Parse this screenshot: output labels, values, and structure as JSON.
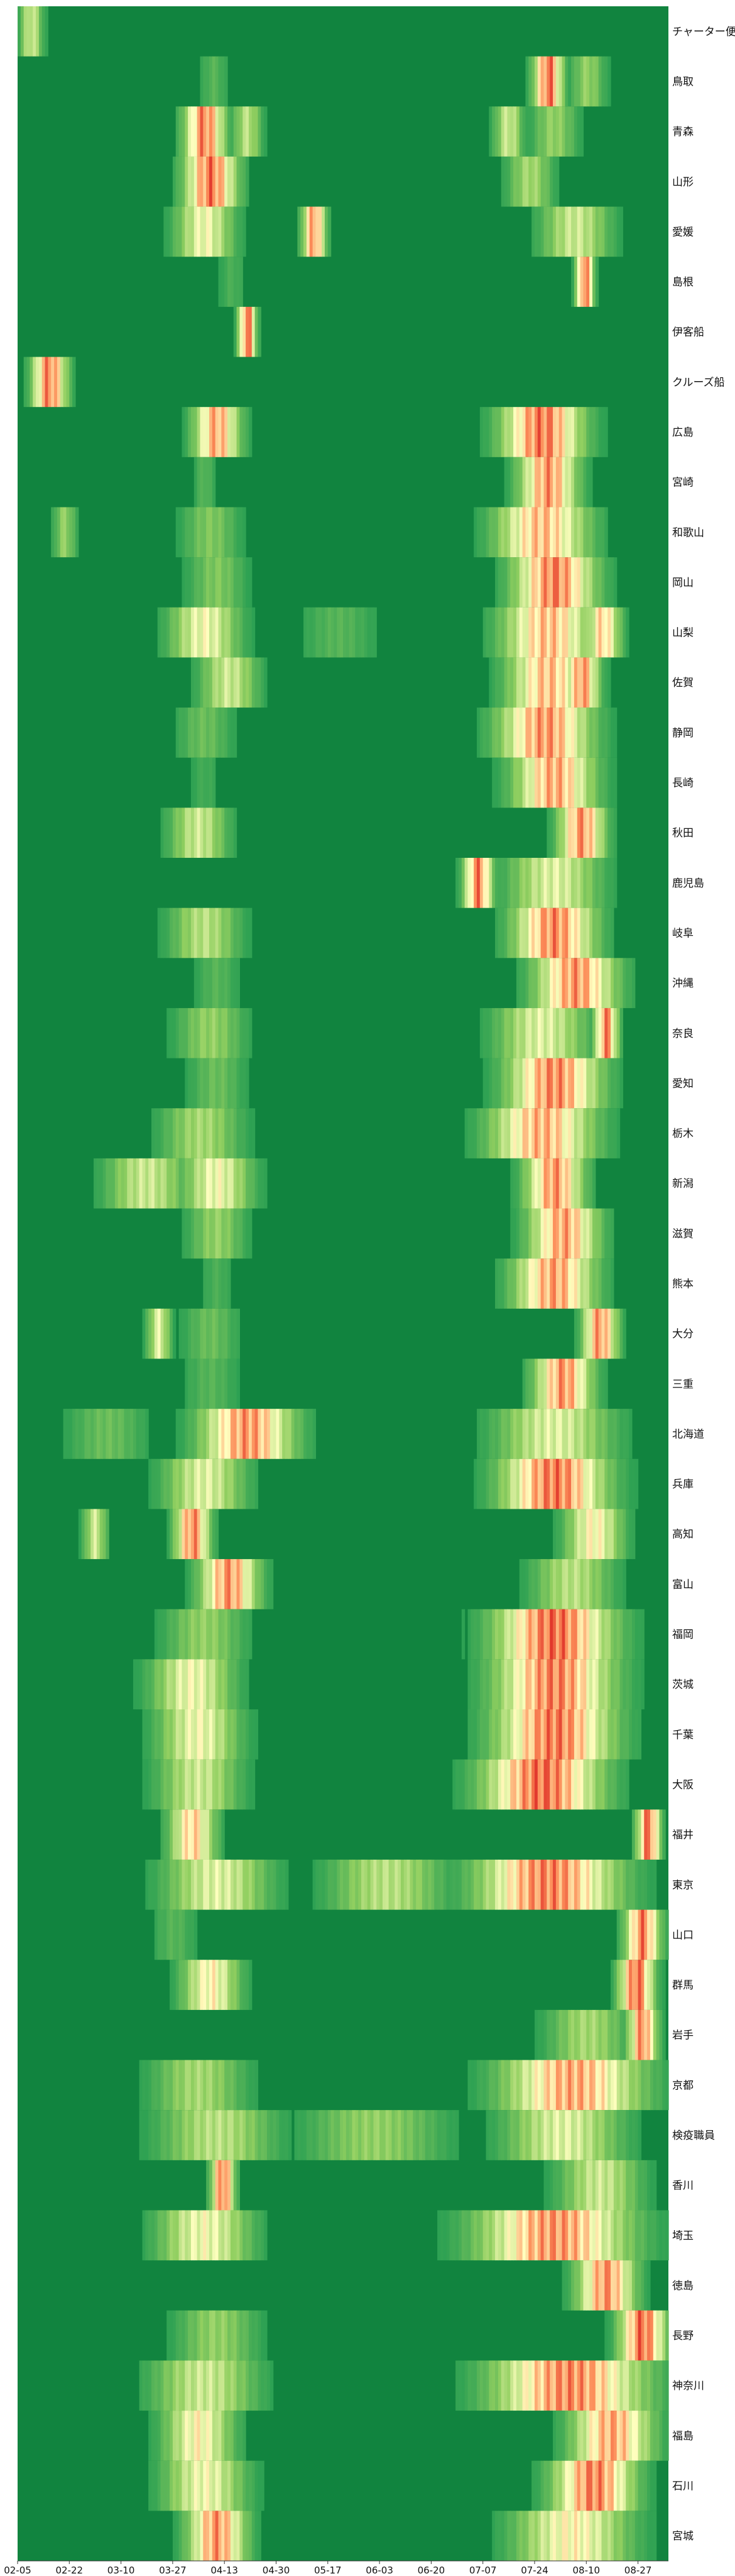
{
  "chart_data": {
    "type": "heatmap",
    "title": "",
    "xlabel": "",
    "ylabel": "",
    "x_ticks": [
      "02-05",
      "02-22",
      "03-10",
      "03-27",
      "04-13",
      "04-30",
      "05-17",
      "06-03",
      "06-20",
      "07-07",
      "07-24",
      "08-10",
      "08-27"
    ],
    "x_start": "02-05",
    "x_end": "09-06",
    "colormap": "RdYlGn_r",
    "value_range": [
      0,
      1
    ],
    "colors": {
      "background": "#11843f",
      "low": "#1a9850",
      "mid": "#ffffbf",
      "high": "#d7191c"
    },
    "rows": [
      {
        "name": "チャーター便",
        "peaks": [
          {
            "at": "02-09",
            "level": 0.45,
            "width": 4
          }
        ]
      },
      {
        "name": "鳥取",
        "peaks": [
          {
            "at": "04-09",
            "level": 0.15,
            "width": 5
          },
          {
            "at": "07-28",
            "level": 0.95,
            "width": 5
          },
          {
            "at": "08-10",
            "level": 0.3,
            "width": 6
          }
        ]
      },
      {
        "name": "青森",
        "peaks": [
          {
            "at": "04-06",
            "level": 0.9,
            "width": 7
          },
          {
            "at": "04-20",
            "level": 0.4,
            "width": 5
          },
          {
            "at": "07-15",
            "level": 0.45,
            "width": 5
          },
          {
            "at": "07-30",
            "level": 0.3,
            "width": 8
          }
        ]
      },
      {
        "name": "山形",
        "peaks": [
          {
            "at": "04-08",
            "level": 0.92,
            "width": 9
          },
          {
            "at": "07-22",
            "level": 0.35,
            "width": 8
          }
        ]
      },
      {
        "name": "愛媛",
        "peaks": [
          {
            "at": "04-06",
            "level": 0.55,
            "width": 10
          },
          {
            "at": "05-12",
            "level": 0.85,
            "width": 4
          },
          {
            "at": "08-06",
            "level": 0.45,
            "width": 12
          }
        ]
      },
      {
        "name": "島根",
        "peaks": [
          {
            "at": "04-15",
            "level": 0.12,
            "width": 5
          },
          {
            "at": "08-09",
            "level": 0.95,
            "width": 3
          }
        ]
      },
      {
        "name": "伊客船",
        "peaks": [
          {
            "at": "04-20",
            "level": 0.95,
            "width": 3
          }
        ]
      },
      {
        "name": "クルーズ船",
        "peaks": [
          {
            "at": "02-15",
            "level": 0.9,
            "width": 6
          }
        ]
      },
      {
        "name": "広島",
        "peaks": [
          {
            "at": "04-10",
            "level": 0.8,
            "width": 8
          },
          {
            "at": "07-26",
            "level": 0.92,
            "width": 14
          }
        ]
      },
      {
        "name": "宮崎",
        "peaks": [
          {
            "at": "04-06",
            "level": 0.15,
            "width": 4
          },
          {
            "at": "07-28",
            "level": 0.85,
            "width": 10
          }
        ]
      },
      {
        "name": "和歌山",
        "peaks": [
          {
            "at": "02-20",
            "level": 0.3,
            "width": 4
          },
          {
            "at": "04-08",
            "level": 0.25,
            "width": 10
          },
          {
            "at": "07-26",
            "level": 0.75,
            "width": 16
          }
        ]
      },
      {
        "name": "岡山",
        "peaks": [
          {
            "at": "04-10",
            "level": 0.25,
            "width": 10
          },
          {
            "at": "07-30",
            "level": 0.9,
            "width": 14
          }
        ]
      },
      {
        "name": "山梨",
        "peaks": [
          {
            "at": "04-06",
            "level": 0.55,
            "width": 12
          },
          {
            "at": "05-20",
            "level": 0.15,
            "width": 14
          },
          {
            "at": "07-28",
            "level": 0.75,
            "width": 16
          },
          {
            "at": "08-15",
            "level": 0.7,
            "width": 6
          }
        ]
      },
      {
        "name": "佐賀",
        "peaks": [
          {
            "at": "04-14",
            "level": 0.45,
            "width": 10
          },
          {
            "at": "07-28",
            "level": 0.75,
            "width": 14
          },
          {
            "at": "08-08",
            "level": 0.85,
            "width": 6
          }
        ]
      },
      {
        "name": "静岡",
        "peaks": [
          {
            "at": "04-06",
            "level": 0.2,
            "width": 10
          },
          {
            "at": "07-27",
            "level": 0.85,
            "width": 16
          }
        ]
      },
      {
        "name": "長崎",
        "peaks": [
          {
            "at": "04-06",
            "level": 0.1,
            "width": 6
          },
          {
            "at": "07-30",
            "level": 0.8,
            "width": 14
          }
        ]
      },
      {
        "name": "秋田",
        "peaks": [
          {
            "at": "04-04",
            "level": 0.45,
            "width": 10
          },
          {
            "at": "08-08",
            "level": 0.85,
            "width": 8
          }
        ]
      },
      {
        "name": "鹿児島",
        "peaks": [
          {
            "at": "07-05",
            "level": 0.9,
            "width": 5
          },
          {
            "at": "07-30",
            "level": 0.5,
            "width": 16
          }
        ]
      },
      {
        "name": "岐阜",
        "peaks": [
          {
            "at": "04-06",
            "level": 0.4,
            "width": 12
          },
          {
            "at": "07-30",
            "level": 0.88,
            "width": 14
          }
        ]
      },
      {
        "name": "沖縄",
        "peaks": [
          {
            "at": "04-10",
            "level": 0.15,
            "width": 8
          },
          {
            "at": "08-06",
            "level": 0.85,
            "width": 14
          }
        ]
      },
      {
        "name": "奈良",
        "peaks": [
          {
            "at": "04-08",
            "level": 0.3,
            "width": 12
          },
          {
            "at": "07-26",
            "level": 0.5,
            "width": 16
          },
          {
            "at": "08-16",
            "level": 0.9,
            "width": 4
          }
        ]
      },
      {
        "name": "愛知",
        "peaks": [
          {
            "at": "04-10",
            "level": 0.2,
            "width": 10
          },
          {
            "at": "07-30",
            "level": 0.88,
            "width": 16
          }
        ]
      },
      {
        "name": "栃木",
        "peaks": [
          {
            "at": "04-05",
            "level": 0.35,
            "width": 14
          },
          {
            "at": "07-26",
            "level": 0.78,
            "width": 18
          }
        ]
      },
      {
        "name": "新潟",
        "peaks": [
          {
            "at": "03-18",
            "level": 0.45,
            "width": 14
          },
          {
            "at": "04-10",
            "level": 0.55,
            "width": 12
          },
          {
            "at": "07-30",
            "level": 0.85,
            "width": 10
          }
        ]
      },
      {
        "name": "滋賀",
        "peaks": [
          {
            "at": "04-10",
            "level": 0.3,
            "width": 10
          },
          {
            "at": "08-02",
            "level": 0.82,
            "width": 12
          }
        ]
      },
      {
        "name": "熊本",
        "peaks": [
          {
            "at": "04-10",
            "level": 0.12,
            "width": 6
          },
          {
            "at": "07-30",
            "level": 0.82,
            "width": 14
          }
        ]
      },
      {
        "name": "大分",
        "peaks": [
          {
            "at": "03-22",
            "level": 0.5,
            "width": 4
          },
          {
            "at": "04-08",
            "level": 0.2,
            "width": 10
          },
          {
            "at": "08-14",
            "level": 0.85,
            "width": 6
          }
        ]
      },
      {
        "name": "三重",
        "peaks": [
          {
            "at": "04-08",
            "level": 0.15,
            "width": 10
          },
          {
            "at": "08-02",
            "level": 0.85,
            "width": 10
          }
        ]
      },
      {
        "name": "北海道",
        "peaks": [
          {
            "at": "04-20",
            "level": 0.85,
            "width": 16
          },
          {
            "at": "03-05",
            "level": 0.2,
            "width": 14
          },
          {
            "at": "07-30",
            "level": 0.5,
            "width": 20
          }
        ]
      },
      {
        "name": "兵庫",
        "peaks": [
          {
            "at": "04-06",
            "level": 0.5,
            "width": 14
          },
          {
            "at": "07-30",
            "level": 0.92,
            "width": 18
          }
        ]
      },
      {
        "name": "高知",
        "peaks": [
          {
            "at": "03-01",
            "level": 0.45,
            "width": 4
          },
          {
            "at": "04-02",
            "level": 0.88,
            "width": 6
          },
          {
            "at": "08-12",
            "level": 0.6,
            "width": 10
          }
        ]
      },
      {
        "name": "富山",
        "peaks": [
          {
            "at": "04-14",
            "level": 0.85,
            "width": 10
          },
          {
            "at": "08-05",
            "level": 0.4,
            "width": 14
          }
        ]
      },
      {
        "name": "福岡",
        "peaks": [
          {
            "at": "04-06",
            "level": 0.3,
            "width": 14
          },
          {
            "at": "07-30",
            "level": 0.95,
            "width": 20
          }
        ]
      },
      {
        "name": "茨城",
        "peaks": [
          {
            "at": "04-02",
            "level": 0.55,
            "width": 14
          },
          {
            "at": "07-30",
            "level": 0.9,
            "width": 20
          }
        ]
      },
      {
        "name": "千葉",
        "peaks": [
          {
            "at": "04-04",
            "level": 0.55,
            "width": 14
          },
          {
            "at": "07-30",
            "level": 0.92,
            "width": 20
          }
        ]
      },
      {
        "name": "大阪",
        "peaks": [
          {
            "at": "04-04",
            "level": 0.45,
            "width": 14
          },
          {
            "at": "07-26",
            "level": 0.95,
            "width": 20
          }
        ]
      },
      {
        "name": "福井",
        "peaks": [
          {
            "at": "04-02",
            "level": 0.7,
            "width": 8
          },
          {
            "at": "08-30",
            "level": 0.95,
            "width": 4
          }
        ]
      },
      {
        "name": "東京",
        "peaks": [
          {
            "at": "04-10",
            "level": 0.5,
            "width": 18
          },
          {
            "at": "06-05",
            "level": 0.4,
            "width": 20
          },
          {
            "at": "07-28",
            "level": 0.9,
            "width": 24
          }
        ]
      },
      {
        "name": "山口",
        "peaks": [
          {
            "at": "03-27",
            "level": 0.15,
            "width": 8
          },
          {
            "at": "08-28",
            "level": 0.9,
            "width": 6
          }
        ]
      },
      {
        "name": "群馬",
        "peaks": [
          {
            "at": "04-08",
            "level": 0.6,
            "width": 10
          },
          {
            "at": "08-26",
            "level": 0.95,
            "width": 6
          }
        ]
      },
      {
        "name": "岩手",
        "peaks": [
          {
            "at": "08-10",
            "level": 0.35,
            "width": 14
          },
          {
            "at": "08-28",
            "level": 0.88,
            "width": 5
          }
        ]
      },
      {
        "name": "京都",
        "peaks": [
          {
            "at": "04-04",
            "level": 0.35,
            "width": 16
          },
          {
            "at": "08-05",
            "level": 0.8,
            "width": 24
          }
        ]
      },
      {
        "name": "検疫職員",
        "peaks": [
          {
            "at": "04-10",
            "level": 0.4,
            "width": 20
          },
          {
            "at": "06-01",
            "level": 0.3,
            "width": 24
          },
          {
            "at": "08-02",
            "level": 0.5,
            "width": 20
          }
        ]
      },
      {
        "name": "香川",
        "peaks": [
          {
            "at": "04-12",
            "level": 0.92,
            "width": 4
          },
          {
            "at": "08-14",
            "level": 0.45,
            "width": 14
          }
        ]
      },
      {
        "name": "埼玉",
        "peaks": [
          {
            "at": "04-06",
            "level": 0.55,
            "width": 16
          },
          {
            "at": "07-30",
            "level": 0.85,
            "width": 26
          }
        ]
      },
      {
        "name": "徳島",
        "peaks": [
          {
            "at": "08-16",
            "level": 0.85,
            "width": 10
          }
        ]
      },
      {
        "name": "長野",
        "peaks": [
          {
            "at": "04-10",
            "level": 0.3,
            "width": 14
          },
          {
            "at": "08-28",
            "level": 0.95,
            "width": 8
          }
        ]
      },
      {
        "name": "神奈川",
        "peaks": [
          {
            "at": "04-06",
            "level": 0.45,
            "width": 18
          },
          {
            "at": "08-04",
            "level": 0.88,
            "width": 26
          }
        ]
      },
      {
        "name": "福島",
        "peaks": [
          {
            "at": "04-04",
            "level": 0.6,
            "width": 12
          },
          {
            "at": "08-18",
            "level": 0.8,
            "width": 14
          }
        ]
      },
      {
        "name": "石川",
        "peaks": [
          {
            "at": "04-06",
            "level": 0.55,
            "width": 14
          },
          {
            "at": "08-12",
            "level": 0.9,
            "width": 14
          }
        ]
      },
      {
        "name": "宮城",
        "peaks": [
          {
            "at": "04-10",
            "level": 0.85,
            "width": 10
          },
          {
            "at": "08-05",
            "level": 0.6,
            "width": 20
          }
        ]
      }
    ]
  }
}
